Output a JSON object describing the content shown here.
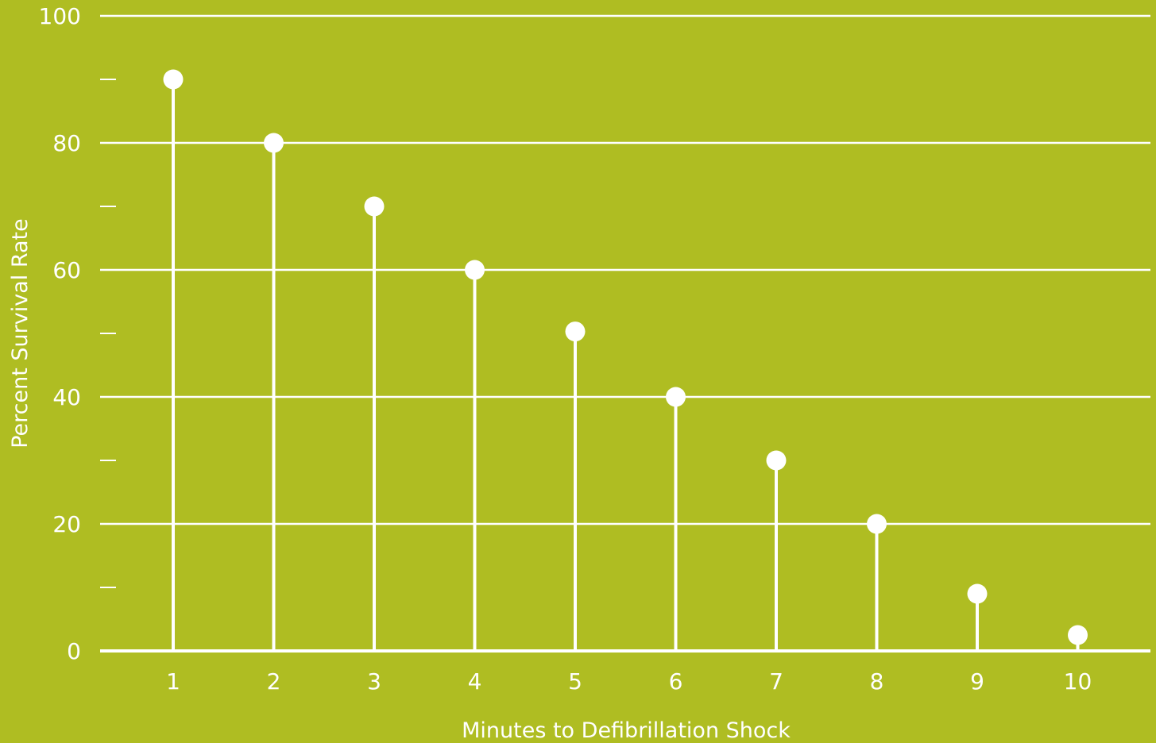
{
  "colors": {
    "background": "#afbd22",
    "foreground": "#ffffff"
  },
  "chart_data": {
    "type": "stem",
    "title": "",
    "xlabel": "Minutes to Defibrillation Shock",
    "ylabel": "Percent Survival Rate",
    "x": [
      1,
      2,
      3,
      4,
      5,
      6,
      7,
      8,
      9,
      10
    ],
    "x_tick_labels": [
      "1",
      "2",
      "3",
      "4",
      "5",
      "6",
      "7",
      "8",
      "9",
      "10"
    ],
    "values": [
      90,
      80,
      70,
      60,
      50.3,
      40,
      30,
      20,
      9,
      2.5
    ],
    "ylim": [
      0,
      100
    ],
    "y_major_ticks": [
      0,
      20,
      40,
      60,
      80,
      100
    ],
    "y_minor_ticks": [
      10,
      30,
      50,
      70,
      90
    ],
    "y_tick_labels": [
      "0",
      "20",
      "40",
      "60",
      "80",
      "100"
    ],
    "grid": true,
    "legend": "none"
  }
}
